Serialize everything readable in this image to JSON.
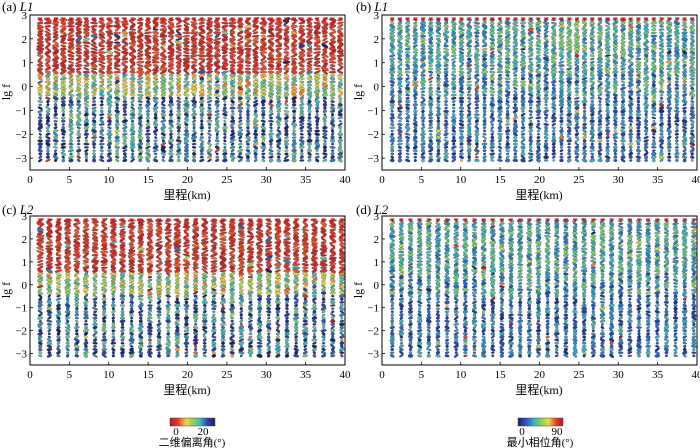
{
  "chart_data": [
    {
      "type": "scatter",
      "panel_label": "(a) ",
      "title": "L1",
      "xlabel": "里程(km)",
      "ylabel": "lg f",
      "xlim": [
        0,
        40
      ],
      "ylim": [
        -3.5,
        3
      ],
      "x_ticks": [
        "0",
        "5",
        "10",
        "15",
        "20",
        "25",
        "30",
        "35",
        "40"
      ],
      "y_ticks": [
        "-3",
        "-2",
        "-1",
        "0",
        "1",
        "2",
        "3"
      ],
      "quantity": "二维偏离角",
      "color_range": [
        0,
        20
      ],
      "sites_count": 40,
      "site_km_range": [
        1.3,
        39.4
      ],
      "lgf_range": [
        -3.1,
        2.8
      ]
    },
    {
      "type": "scatter",
      "panel_label": "(b) ",
      "title": "L1",
      "xlabel": "里程(km)",
      "ylabel": "lg f",
      "xlim": [
        0,
        40
      ],
      "ylim": [
        -3.5,
        3
      ],
      "x_ticks": [
        "0",
        "5",
        "10",
        "15",
        "20",
        "25",
        "30",
        "35",
        "40"
      ],
      "y_ticks": [
        "-3",
        "-2",
        "-1",
        "0",
        "1",
        "2",
        "3"
      ],
      "quantity": "最小相位角",
      "color_range": [
        0,
        90
      ],
      "sites_count": 40,
      "site_km_range": [
        1.3,
        39.4
      ],
      "lgf_range": [
        -3.1,
        2.8
      ]
    },
    {
      "type": "scatter",
      "panel_label": "(c) ",
      "title": "L2",
      "xlabel": "里程(km)",
      "ylabel": "lg f",
      "xlim": [
        0,
        40
      ],
      "ylim": [
        -3.5,
        3
      ],
      "x_ticks": [
        "0",
        "5",
        "10",
        "15",
        "20",
        "25",
        "30",
        "35",
        "40"
      ],
      "y_ticks": [
        "-3",
        "-2",
        "-1",
        "0",
        "1",
        "2",
        "3"
      ],
      "quantity": "二维偏离角",
      "color_range": [
        0,
        20
      ],
      "sites_count": 34,
      "site_km_range": [
        1.3,
        39.6
      ],
      "lgf_range": [
        -3.1,
        2.8
      ]
    },
    {
      "type": "scatter",
      "panel_label": "(d) ",
      "title": "L2",
      "xlabel": "里程(km)",
      "ylabel": "lg f",
      "xlim": [
        0,
        40
      ],
      "ylim": [
        -3.5,
        3
      ],
      "x_ticks": [
        "0",
        "5",
        "10",
        "15",
        "20",
        "25",
        "30",
        "35",
        "40"
      ],
      "y_ticks": [
        "-3",
        "-2",
        "-1",
        "0",
        "1",
        "2",
        "3"
      ],
      "quantity": "最小相位角",
      "color_range": [
        0,
        90
      ],
      "sites_count": 34,
      "site_km_range": [
        1.3,
        39.6
      ],
      "lgf_range": [
        -3.1,
        2.8
      ]
    }
  ],
  "colorbars": [
    {
      "label": "二维偏离角(°)",
      "ticks": [
        "0",
        "20"
      ],
      "colors": [
        "#b2182b",
        "#e2402a",
        "#f7d345",
        "#8dd15a",
        "#3bb3c3",
        "#2c3fa0",
        "#20205e"
      ]
    },
    {
      "label": "最小相位角(°)",
      "ticks": [
        "0",
        "90"
      ],
      "colors": [
        "#20205e",
        "#2c57c0",
        "#3bb3c3",
        "#8dd15a",
        "#f7d345",
        "#e2402a",
        "#b2182b"
      ]
    }
  ],
  "marker_colors": {
    "triangle": "#d7191c",
    "outline": "#222222"
  }
}
